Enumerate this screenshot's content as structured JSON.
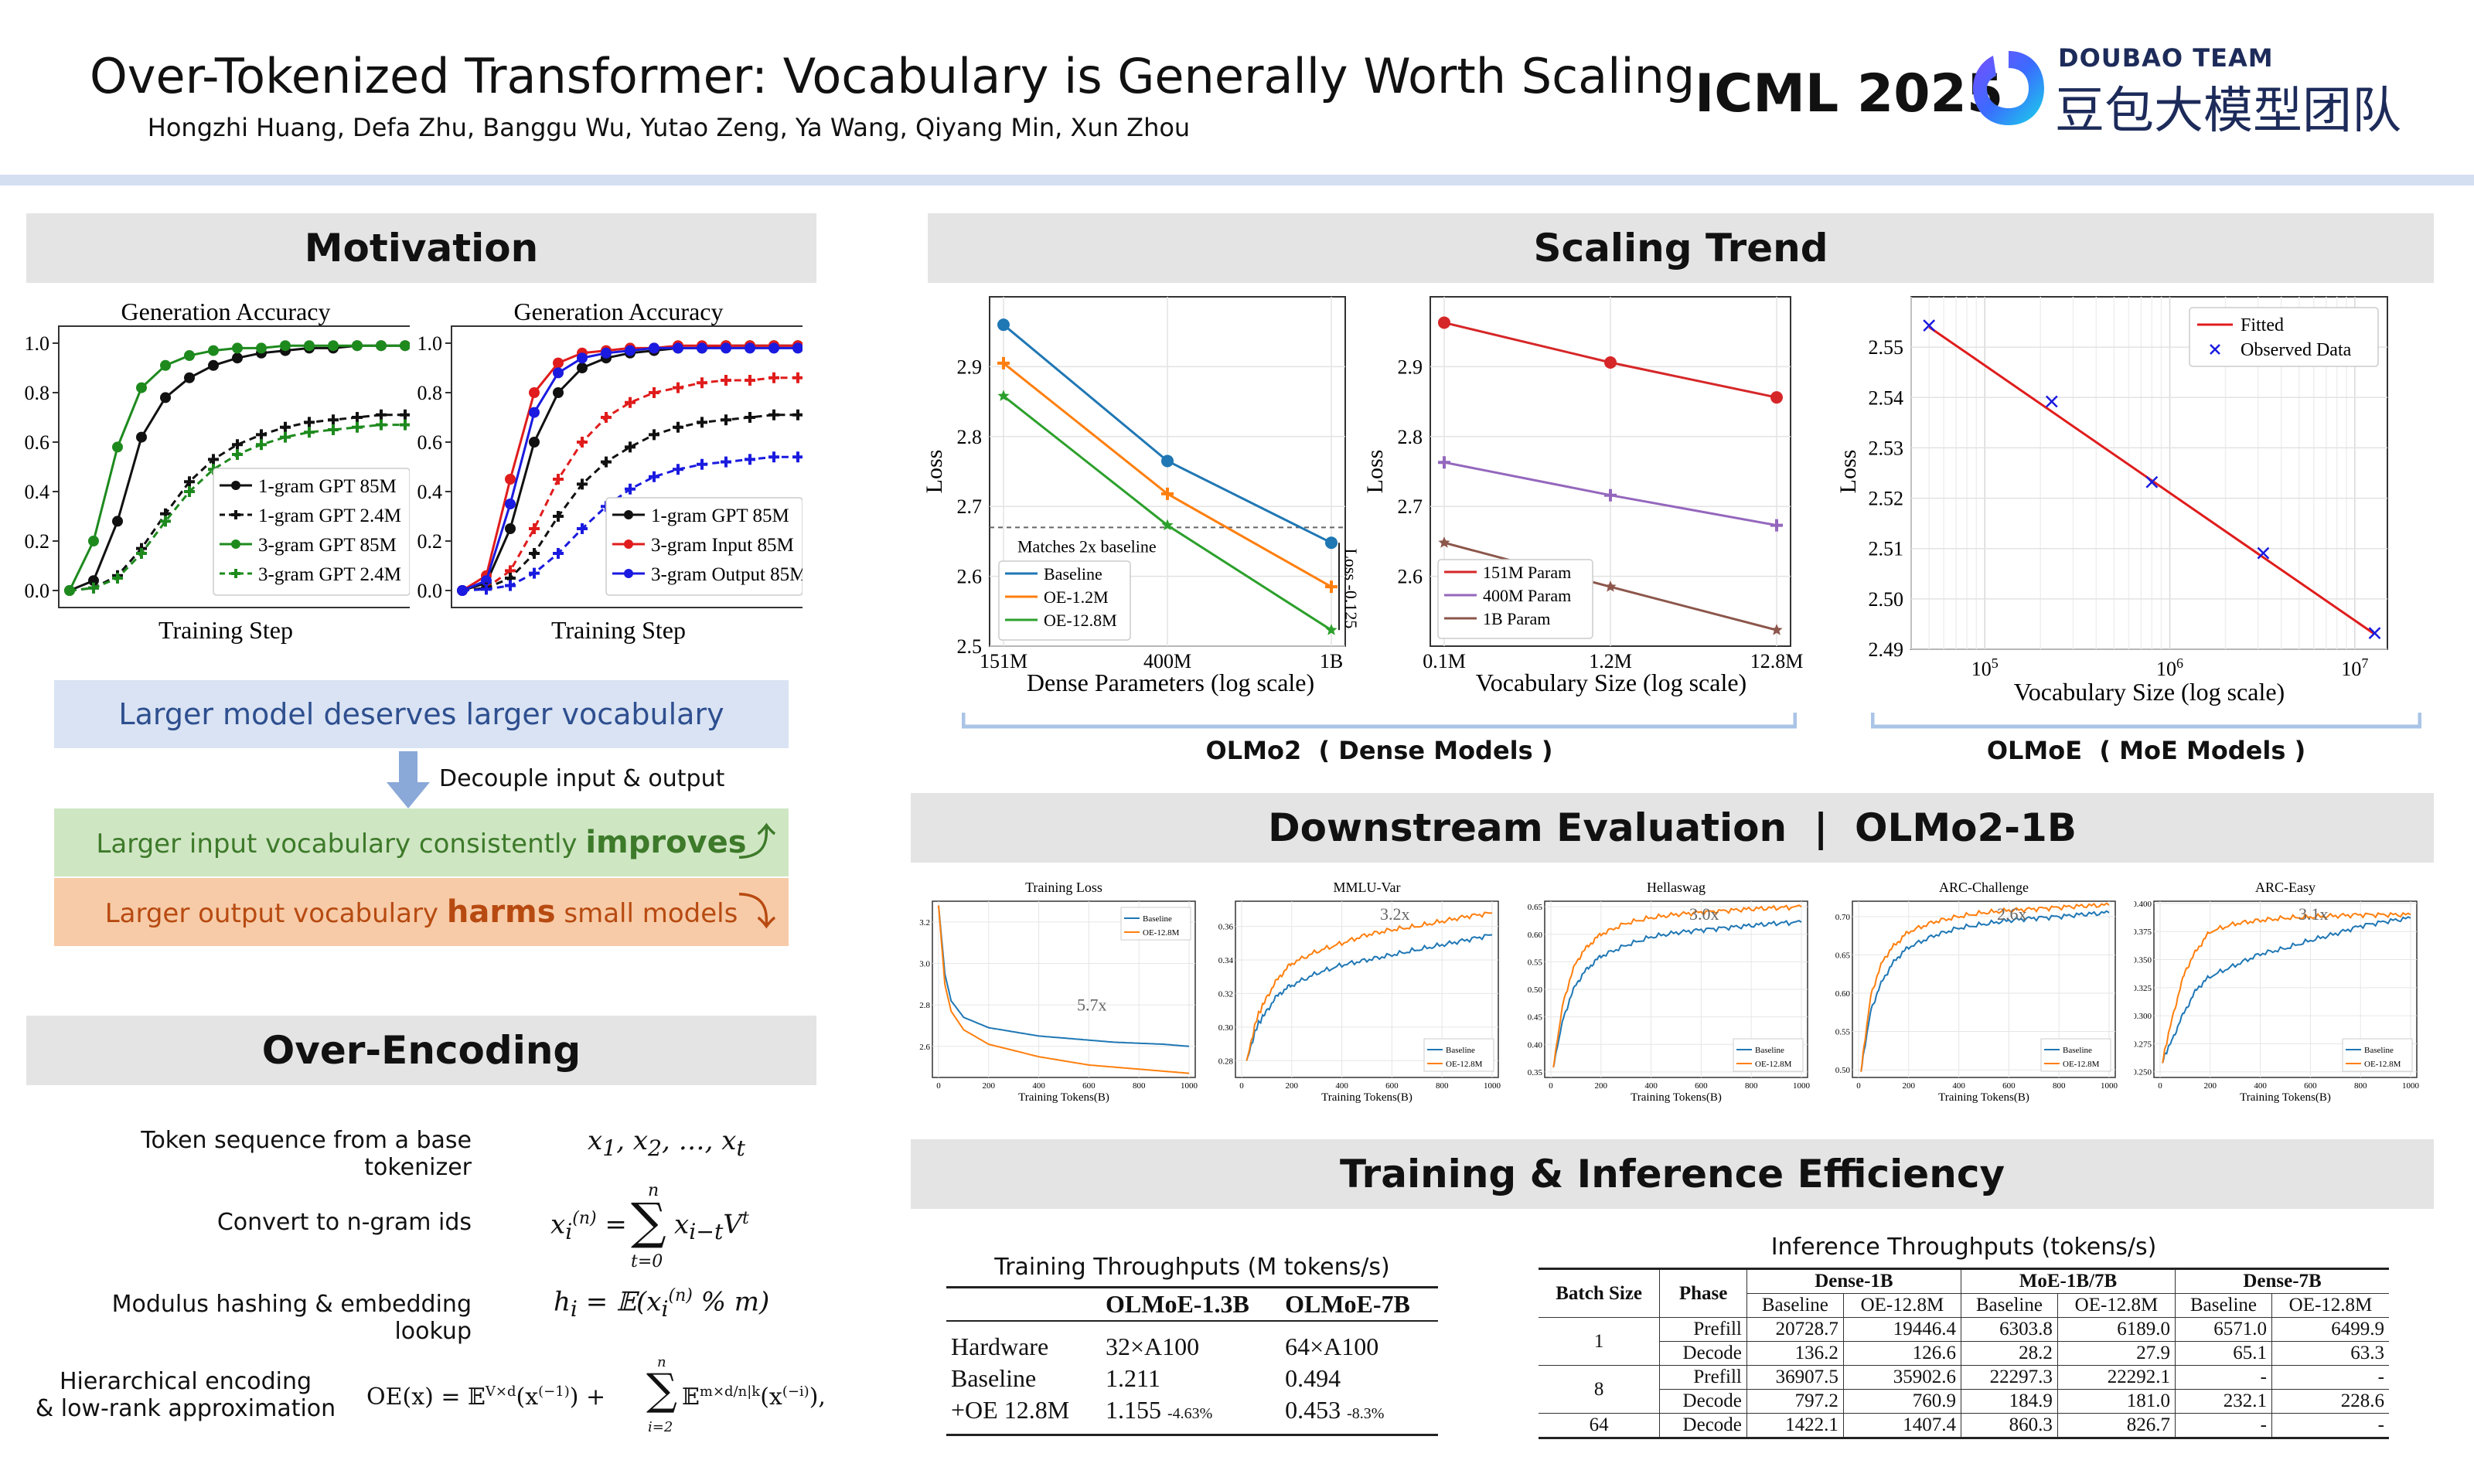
{
  "header": {
    "title": "Over-Tokenized Transformer: Vocabulary is Generally Worth Scaling",
    "authors": "Hongzhi Huang, Defa Zhu, Banggu Wu, Yutao Zeng, Ya Wang, Qiyang Min, Xun Zhou",
    "venue": "ICML 2025",
    "team": "DOUBAO TEAM",
    "team_cn": "豆包大模型团队"
  },
  "sections": {
    "motivation": "Motivation",
    "over_encoding": "Over-Encoding",
    "scaling": "Scaling Trend",
    "downstream": "Downstream Evaluation  |  OLMo2-1B",
    "efficiency": "Training & Inference Efficiency"
  },
  "motivation": {
    "msg1": "Larger model deserves larger vocabulary",
    "arrow_label": "Decouple input & output",
    "msg2_pre": "Larger input vocabulary consistently ",
    "msg2_bold": "improves",
    "msg3_pre": "Larger output vocabulary ",
    "msg3_bold": "harms",
    "msg3_post": " small models"
  },
  "over_encoding": {
    "rows": [
      {
        "label": "Token sequence from a base tokenizer",
        "math": "x₁, x₂, …, xₜ"
      },
      {
        "label": "Convert to n-gram ids",
        "math": "xᵢ⁽ⁿ⁾ = Σₜ₌₀ⁿ xᵢ₋ₜ Vᵗ"
      },
      {
        "label": "Modulus hashing & embedding lookup",
        "math": "hᵢ = 𝔼(xᵢ⁽ⁿ⁾ % m)"
      },
      {
        "label": "Hierarchical encoding\n& low-rank approximation",
        "math": "OE(x) = 𝔼^{V×d}(x⁽⁻¹⁾) + Σᵢ₌₂ⁿ 𝔼^{m×d/n|k}(x⁽⁻ⁱ⁾),"
      }
    ]
  },
  "scaling": {
    "olmo2_caption": "OLMo2  ( Dense Models )",
    "olmoe_caption": "OLMoE  ( MoE Models )"
  },
  "efficiency": {
    "train_title": "Training Throughputs (M tokens/s)",
    "train_headers": [
      "",
      "OLMoE-1.3B",
      "OLMoE-7B"
    ],
    "train_rows": [
      [
        "Hardware",
        "32×A100",
        "64×A100"
      ],
      [
        "Baseline",
        "1.211",
        "0.494"
      ],
      [
        "+OE 12.8M",
        "1.155",
        "0.453"
      ]
    ],
    "train_deltas": [
      "",
      "",
      "-4.63%",
      "-8.3%"
    ],
    "infer_title": "Inference Throughputs (tokens/s)",
    "infer_group_headers": [
      "Batch Size",
      "Phase",
      "Dense-1B",
      "MoE-1B/7B",
      "Dense-7B"
    ],
    "infer_sub_headers": [
      "Baseline",
      "OE-12.8M",
      "Baseline",
      "OE-12.8M",
      "Baseline",
      "OE-12.8M"
    ],
    "infer_rows": [
      [
        "1",
        "Prefill",
        "20728.7",
        "19446.4",
        "6303.8",
        "6189.0",
        "6571.0",
        "6499.9"
      ],
      [
        "",
        "Decode",
        "136.2",
        "126.6",
        "28.2",
        "27.9",
        "65.1",
        "63.3"
      ],
      [
        "8",
        "Prefill",
        "36907.5",
        "35902.6",
        "22297.3",
        "22292.1",
        "-",
        "-"
      ],
      [
        "",
        "Decode",
        "797.2",
        "760.9",
        "184.9",
        "181.0",
        "232.1",
        "228.6"
      ],
      [
        "64",
        "Decode",
        "1422.1",
        "1407.4",
        "860.3",
        "826.7",
        "-",
        "-"
      ]
    ]
  },
  "chart_data": [
    {
      "type": "line",
      "title": "Generation Accuracy",
      "xlabel": "Training Step",
      "ylabel": "",
      "ylim": [
        0,
        1.0
      ],
      "yticks": [
        "0.0",
        "0.2",
        "0.4",
        "0.6",
        "0.8",
        "1.0"
      ],
      "legend": "lower-right",
      "series": [
        {
          "name": "1-gram GPT 85M",
          "color": "#111111",
          "dash": false,
          "marker": "circle",
          "values": [
            0,
            0.04,
            0.28,
            0.62,
            0.78,
            0.86,
            0.91,
            0.94,
            0.96,
            0.97,
            0.98,
            0.98,
            0.99,
            0.99,
            0.99
          ]
        },
        {
          "name": "1-gram GPT 2.4M",
          "color": "#111111",
          "dash": true,
          "marker": "plus",
          "values": [
            0,
            0.01,
            0.06,
            0.17,
            0.31,
            0.44,
            0.53,
            0.59,
            0.63,
            0.66,
            0.68,
            0.69,
            0.7,
            0.71,
            0.71
          ]
        },
        {
          "name": "3-gram GPT 85M",
          "color": "#1e8a1e",
          "dash": false,
          "marker": "circle",
          "values": [
            0,
            0.2,
            0.58,
            0.82,
            0.91,
            0.95,
            0.97,
            0.98,
            0.98,
            0.99,
            0.99,
            0.99,
            0.99,
            0.99,
            0.99
          ]
        },
        {
          "name": "3-gram GPT 2.4M",
          "color": "#1e8a1e",
          "dash": true,
          "marker": "plus",
          "values": [
            0,
            0.01,
            0.05,
            0.15,
            0.28,
            0.4,
            0.49,
            0.55,
            0.59,
            0.62,
            0.64,
            0.65,
            0.66,
            0.67,
            0.67
          ]
        }
      ]
    },
    {
      "type": "line",
      "title": "Generation Accuracy",
      "xlabel": "Training Step",
      "ylabel": "",
      "ylim": [
        0,
        1.0
      ],
      "yticks": [
        "0.0",
        "0.2",
        "0.4",
        "0.6",
        "0.8",
        "1.0"
      ],
      "legend": "lower-right",
      "series": [
        {
          "name": "1-gram GPT 85M",
          "color": "#111111",
          "dash": false,
          "marker": "circle",
          "values": [
            0,
            0.03,
            0.25,
            0.6,
            0.8,
            0.9,
            0.94,
            0.96,
            0.97,
            0.98,
            0.98,
            0.99,
            0.99,
            0.99,
            0.99
          ]
        },
        {
          "name": "3-gram Input 85M",
          "color": "#e01c1c",
          "dash": false,
          "marker": "circle",
          "values": [
            0,
            0.06,
            0.45,
            0.8,
            0.92,
            0.96,
            0.97,
            0.98,
            0.98,
            0.99,
            0.99,
            0.99,
            0.99,
            0.99,
            0.99
          ]
        },
        {
          "name": "3-gram Output 85M",
          "color": "#1a1ae0",
          "dash": false,
          "marker": "circle",
          "values": [
            0,
            0.04,
            0.35,
            0.72,
            0.88,
            0.94,
            0.96,
            0.97,
            0.98,
            0.98,
            0.98,
            0.98,
            0.98,
            0.98,
            0.98
          ]
        },
        {
          "name": "",
          "color": "#e01c1c",
          "dash": true,
          "marker": "plus",
          "values": [
            0,
            0.01,
            0.08,
            0.25,
            0.45,
            0.6,
            0.7,
            0.76,
            0.8,
            0.82,
            0.84,
            0.85,
            0.85,
            0.86,
            0.86
          ]
        },
        {
          "name": "",
          "color": "#111111",
          "dash": true,
          "marker": "plus",
          "values": [
            0,
            0.01,
            0.05,
            0.15,
            0.3,
            0.43,
            0.52,
            0.58,
            0.63,
            0.66,
            0.68,
            0.69,
            0.7,
            0.71,
            0.71
          ]
        },
        {
          "name": "",
          "color": "#1a1ae0",
          "dash": true,
          "marker": "plus",
          "values": [
            0,
            0.005,
            0.02,
            0.07,
            0.15,
            0.25,
            0.34,
            0.41,
            0.46,
            0.49,
            0.51,
            0.52,
            0.53,
            0.54,
            0.54
          ]
        }
      ]
    },
    {
      "type": "line",
      "title": "",
      "xlabel": "Dense Parameters (log scale)",
      "ylabel": "Loss",
      "categories": [
        "151M",
        "400M",
        "1B"
      ],
      "ylim": [
        2.5,
        3.0
      ],
      "yticks": [
        "2.5",
        "2.6",
        "2.7",
        "2.8",
        "2.9"
      ],
      "annotations": [
        "Matches 2x baseline",
        "Loss -0.125"
      ],
      "series": [
        {
          "name": "Baseline",
          "color": "#1f77b4",
          "values": [
            2.96,
            2.765,
            2.648
          ]
        },
        {
          "name": "OE-1.2M",
          "color": "#ff7f0e",
          "values": [
            2.905,
            2.718,
            2.585
          ]
        },
        {
          "name": "OE-12.8M",
          "color": "#2ca02c",
          "values": [
            2.858,
            2.673,
            2.523
          ]
        }
      ]
    },
    {
      "type": "line",
      "title": "",
      "xlabel": "Vocabulary Size (log scale)",
      "ylabel": "Loss",
      "categories": [
        "0.1M",
        "1.2M",
        "12.8M"
      ],
      "ylim": [
        2.5,
        3.0
      ],
      "yticks": [
        "2.6",
        "2.7",
        "2.8",
        "2.9"
      ],
      "series": [
        {
          "name": "151M Param",
          "color": "#d62728",
          "values": [
            2.963,
            2.906,
            2.856
          ]
        },
        {
          "name": "400M Param",
          "color": "#9467bd",
          "values": [
            2.763,
            2.716,
            2.673
          ]
        },
        {
          "name": "1B Param",
          "color": "#8c564b",
          "values": [
            2.648,
            2.585,
            2.523
          ]
        }
      ]
    },
    {
      "type": "scatter",
      "title": "",
      "xlabel": "Vocabulary Size (log scale)",
      "ylabel": "Loss",
      "xscale": "log",
      "xlim": [
        40000,
        15000000
      ],
      "ylim": [
        2.49,
        2.56
      ],
      "yticks": [
        "2.49",
        "2.50",
        "2.51",
        "2.52",
        "2.53",
        "2.54",
        "2.55"
      ],
      "series": [
        {
          "name": "Fitted",
          "color": "#e01c1c",
          "x": [
            50000,
            12800000
          ],
          "y": [
            2.554,
            2.493
          ]
        },
        {
          "name": "Observed Data",
          "color": "#1a1ae0",
          "x": [
            50000,
            230000,
            800000,
            3200000,
            12800000
          ],
          "y": [
            2.5543,
            2.5392,
            2.5232,
            2.5091,
            2.4932
          ]
        }
      ]
    },
    {
      "type": "line",
      "title": "Training Loss",
      "xlabel": "Training Tokens(B)",
      "xlim": [
        0,
        1000
      ],
      "ylim": [
        2.45,
        3.3
      ],
      "yticks": [
        "2.6",
        "2.8",
        "3.0",
        "3.2"
      ],
      "annotation": "5.7x",
      "series": [
        {
          "name": "Baseline",
          "color": "#1f77b4",
          "x": [
            0,
            25,
            50,
            100,
            200,
            300,
            400,
            500,
            600,
            700,
            800,
            900,
            1000
          ],
          "y": [
            3.28,
            2.95,
            2.82,
            2.74,
            2.69,
            2.67,
            2.65,
            2.64,
            2.63,
            2.62,
            2.615,
            2.61,
            2.6
          ]
        },
        {
          "name": "OE-12.8M",
          "color": "#ff7f0e",
          "x": [
            0,
            25,
            50,
            100,
            200,
            300,
            400,
            500,
            600,
            700,
            800,
            900,
            1000
          ],
          "y": [
            3.28,
            2.9,
            2.77,
            2.68,
            2.61,
            2.58,
            2.55,
            2.53,
            2.51,
            2.5,
            2.49,
            2.48,
            2.47
          ]
        }
      ]
    },
    {
      "type": "line",
      "title": "MMLU-Var",
      "xlabel": "Training Tokens(B)",
      "xlim": [
        0,
        1000
      ],
      "ylim": [
        0.27,
        0.375
      ],
      "yticks": [
        "0.28",
        "0.30",
        "0.32",
        "0.34",
        "0.36"
      ],
      "annotation": "3.2x",
      "series": [
        {
          "name": "Baseline",
          "color": "#1f77b4",
          "x": [
            20,
            60,
            100,
            150,
            200,
            300,
            400,
            500,
            600,
            700,
            800,
            900,
            1000
          ],
          "y": [
            0.28,
            0.3,
            0.31,
            0.32,
            0.325,
            0.332,
            0.337,
            0.34,
            0.343,
            0.346,
            0.349,
            0.352,
            0.355
          ]
        },
        {
          "name": "OE-12.8M",
          "color": "#ff7f0e",
          "x": [
            20,
            60,
            100,
            150,
            200,
            300,
            400,
            500,
            600,
            700,
            800,
            900,
            1000
          ],
          "y": [
            0.28,
            0.305,
            0.318,
            0.33,
            0.338,
            0.345,
            0.35,
            0.355,
            0.358,
            0.36,
            0.363,
            0.366,
            0.368
          ]
        }
      ]
    },
    {
      "type": "line",
      "title": "Hellaswag",
      "xlabel": "Training Tokens(B)",
      "xlim": [
        0,
        1000
      ],
      "ylim": [
        0.34,
        0.66
      ],
      "yticks": [
        "0.35",
        "0.40",
        "0.45",
        "0.50",
        "0.55",
        "0.60",
        "0.65"
      ],
      "annotation": "3.0x",
      "series": [
        {
          "name": "Baseline",
          "color": "#1f77b4",
          "x": [
            10,
            50,
            100,
            150,
            200,
            300,
            400,
            500,
            600,
            700,
            800,
            900,
            1000
          ],
          "y": [
            0.36,
            0.45,
            0.51,
            0.54,
            0.56,
            0.58,
            0.595,
            0.603,
            0.608,
            0.612,
            0.616,
            0.62,
            0.622
          ]
        },
        {
          "name": "OE-12.8M",
          "color": "#ff7f0e",
          "x": [
            10,
            50,
            100,
            150,
            200,
            300,
            400,
            500,
            600,
            700,
            800,
            900,
            1000
          ],
          "y": [
            0.36,
            0.48,
            0.55,
            0.58,
            0.6,
            0.62,
            0.63,
            0.636,
            0.64,
            0.643,
            0.646,
            0.648,
            0.65
          ]
        }
      ]
    },
    {
      "type": "line",
      "title": "ARC-Challenge",
      "xlabel": "Training Tokens(B)",
      "xlim": [
        0,
        1000
      ],
      "ylim": [
        0.49,
        0.72
      ],
      "yticks": [
        "0.50",
        "0.55",
        "0.60",
        "0.65",
        "0.70"
      ],
      "annotation": "2.6x",
      "series": [
        {
          "name": "Baseline",
          "color": "#1f77b4",
          "x": [
            10,
            50,
            100,
            150,
            200,
            300,
            400,
            500,
            600,
            700,
            800,
            900,
            1000
          ],
          "y": [
            0.5,
            0.58,
            0.62,
            0.645,
            0.66,
            0.675,
            0.685,
            0.69,
            0.695,
            0.698,
            0.7,
            0.703,
            0.705
          ]
        },
        {
          "name": "OE-12.8M",
          "color": "#ff7f0e",
          "x": [
            10,
            50,
            100,
            150,
            200,
            300,
            400,
            500,
            600,
            700,
            800,
            900,
            1000
          ],
          "y": [
            0.5,
            0.6,
            0.645,
            0.665,
            0.68,
            0.693,
            0.7,
            0.705,
            0.708,
            0.71,
            0.712,
            0.714,
            0.715
          ]
        }
      ]
    },
    {
      "type": "line",
      "title": "ARC-Easy",
      "xlabel": "Training Tokens(B)",
      "xlim": [
        0,
        1000
      ],
      "ylim": [
        0.245,
        0.402
      ],
      "yticks": [
        "0.250",
        "0.275",
        "0.300",
        "0.325",
        "0.350",
        "0.375",
        "0.400"
      ],
      "annotation": "3.1x",
      "series": [
        {
          "name": "Baseline",
          "color": "#1f77b4",
          "x": [
            10,
            50,
            100,
            150,
            200,
            300,
            400,
            500,
            600,
            700,
            800,
            900,
            1000
          ],
          "y": [
            0.26,
            0.28,
            0.305,
            0.325,
            0.335,
            0.345,
            0.355,
            0.36,
            0.367,
            0.373,
            0.38,
            0.384,
            0.387
          ]
        },
        {
          "name": "OE-12.8M",
          "color": "#ff7f0e",
          "x": [
            10,
            50,
            100,
            150,
            200,
            300,
            400,
            500,
            600,
            700,
            800,
            900,
            1000
          ],
          "y": [
            0.26,
            0.3,
            0.34,
            0.36,
            0.375,
            0.382,
            0.385,
            0.387,
            0.388,
            0.389,
            0.39,
            0.39,
            0.39
          ]
        }
      ]
    }
  ]
}
